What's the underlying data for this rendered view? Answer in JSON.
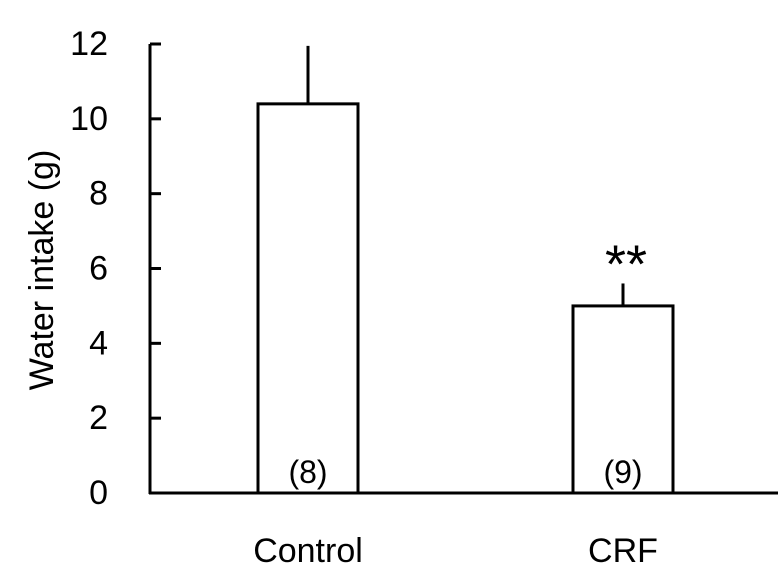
{
  "chart_data": {
    "type": "bar",
    "title": "",
    "xlabel": "",
    "ylabel": "Water intake (g)",
    "ylim": [
      0,
      12
    ],
    "yticks": [
      0,
      2,
      4,
      6,
      8,
      10,
      12
    ],
    "categories": [
      "Control",
      "CRF"
    ],
    "values": [
      10.4,
      5.0
    ],
    "errors": [
      1.55,
      0.6
    ],
    "n_labels": [
      "(8)",
      "(9)"
    ],
    "significance": [
      "",
      "**"
    ],
    "bar_fill": "#ffffff",
    "bar_stroke": "#000000",
    "grid": false,
    "legend": "none"
  }
}
